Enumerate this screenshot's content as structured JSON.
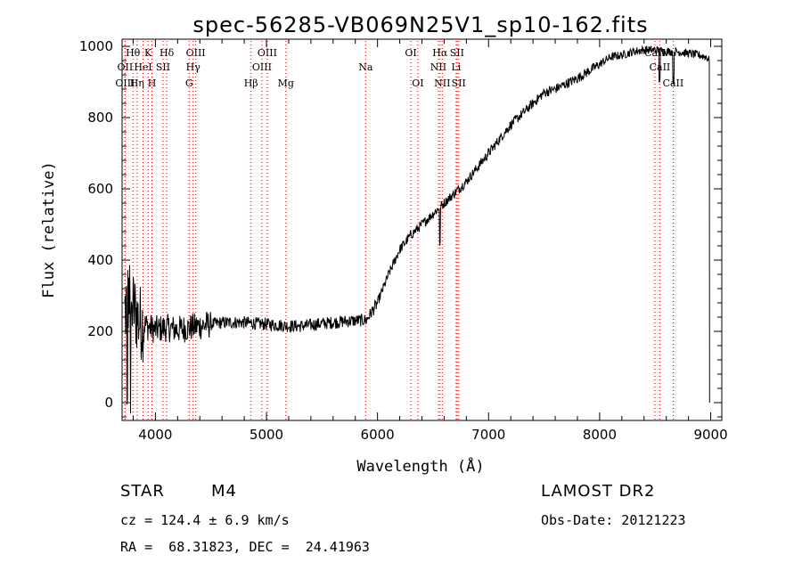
{
  "chart_data": {
    "type": "line",
    "title": "spec-56285-VB069N25V1_sp10-162.fits",
    "xlabel": "Wavelength (Å)",
    "ylabel": "Flux (relative)",
    "xlim": [
      3700,
      9100
    ],
    "ylim": [
      -50,
      1020
    ],
    "x_ticks": [
      4000,
      5000,
      6000,
      7000,
      8000,
      9000
    ],
    "y_ticks": [
      0,
      200,
      400,
      600,
      800,
      1000
    ],
    "grid": false,
    "line_color": "#000000",
    "marker_color": "#cc0000",
    "spectrum_anchors": {
      "x": [
        3720,
        3760,
        3800,
        3850,
        3900,
        3950,
        4000,
        4100,
        4200,
        4300,
        4400,
        4500,
        4600,
        4700,
        4800,
        4900,
        5000,
        5100,
        5200,
        5300,
        5400,
        5500,
        5600,
        5700,
        5800,
        5900,
        6000,
        6100,
        6200,
        6300,
        6400,
        6500,
        6600,
        6700,
        6800,
        6900,
        7000,
        7100,
        7200,
        7300,
        7400,
        7500,
        7600,
        7700,
        7800,
        7900,
        8000,
        8100,
        8200,
        8300,
        8400,
        8500,
        8600,
        8700,
        8800,
        8900,
        8960,
        8990
      ],
      "y": [
        250,
        300,
        270,
        230,
        220,
        210,
        205,
        210,
        205,
        210,
        215,
        220,
        225,
        225,
        225,
        222,
        220,
        218,
        215,
        215,
        218,
        222,
        225,
        228,
        230,
        232,
        280,
        360,
        430,
        470,
        500,
        530,
        560,
        590,
        620,
        660,
        700,
        740,
        780,
        810,
        840,
        870,
        880,
        895,
        910,
        930,
        950,
        970,
        975,
        985,
        990,
        990,
        985,
        985,
        980,
        975,
        970,
        960
      ]
    },
    "lines": [
      {
        "label": "Hθ",
        "x": 3798,
        "row": 1
      },
      {
        "label": "OII",
        "x": 3727,
        "row": 2
      },
      {
        "label": "OIII",
        "x": 3727,
        "row": 3
      },
      {
        "label": "K",
        "x": 3934,
        "row": 1
      },
      {
        "label": "HeI",
        "x": 3889,
        "row": 2
      },
      {
        "label": "Hη",
        "x": 3835,
        "row": 3
      },
      {
        "label": "SII",
        "x": 4069,
        "row": 2
      },
      {
        "label": "H",
        "x": 3969,
        "row": 3
      },
      {
        "label": "Hδ",
        "x": 4102,
        "row": 1
      },
      {
        "label": "OIII",
        "x": 4363,
        "row": 1
      },
      {
        "label": "Hγ",
        "x": 4340,
        "row": 2
      },
      {
        "label": "G",
        "x": 4304,
        "row": 3
      },
      {
        "label": "OIII",
        "x": 5007,
        "row": 1
      },
      {
        "label": "OIII",
        "x": 4959,
        "row": 2
      },
      {
        "label": "Hβ",
        "x": 4861,
        "row": 3
      },
      {
        "label": "Mg",
        "x": 5175,
        "row": 3
      },
      {
        "label": "Na",
        "x": 5893,
        "row": 2
      },
      {
        "label": "OI",
        "x": 6300,
        "row": 1
      },
      {
        "label": "OI",
        "x": 6363,
        "row": 3
      },
      {
        "label": "Hα",
        "x": 6563,
        "row": 1
      },
      {
        "label": "NII",
        "x": 6548,
        "row": 2
      },
      {
        "label": "NII",
        "x": 6583,
        "row": 3
      },
      {
        "label": "SII",
        "x": 6716,
        "row": 1
      },
      {
        "label": "Li",
        "x": 6708,
        "row": 2
      },
      {
        "label": "SII",
        "x": 6731,
        "row": 3
      },
      {
        "label": "CaII",
        "x": 8498,
        "row": 1
      },
      {
        "label": "CaII",
        "x": 8542,
        "row": 2
      },
      {
        "label": "CaII",
        "x": 8662,
        "row": 3
      }
    ]
  },
  "info": {
    "class_label": "STAR",
    "subclass": "M4",
    "survey": "LAMOST DR2",
    "cz": "cz = 124.4 ± 6.9 km/s",
    "obs_date": "Obs-Date: 20121223",
    "coords": "RA =  68.31823, DEC =  24.41963"
  }
}
